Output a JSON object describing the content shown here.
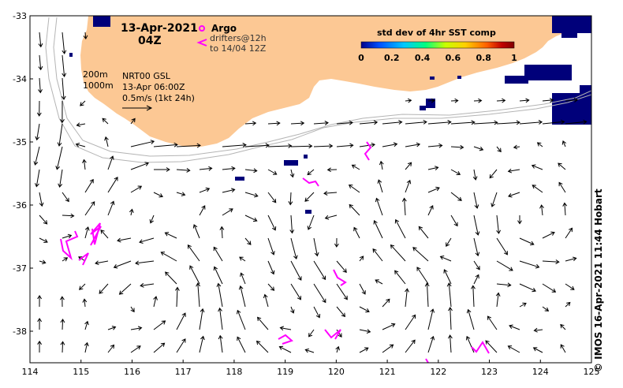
{
  "header": {
    "date": "13-Apr-2021",
    "time": "04Z"
  },
  "argo_legend": {
    "argo_label": "Argo",
    "drifters_label": "drifters@12h",
    "drifters_to": "to 14/04 12Z"
  },
  "info": {
    "isobath_200": "200m",
    "isobath_1000": "1000m",
    "product": "NRT00 GSL",
    "valid_time": "13-Apr 06:00Z",
    "scale_label": "0.5m/s (1kt 24h)"
  },
  "colorbar": {
    "title": "std dev of 4hr SST comp",
    "ticks": [
      "0",
      "0.2",
      "0.4",
      "0.6",
      "0.8",
      "1"
    ],
    "colors": [
      "#00008b",
      "#0050ff",
      "#00c8ff",
      "#00ff80",
      "#c8ff00",
      "#ffd000",
      "#ff6000",
      "#c00000",
      "#800000"
    ]
  },
  "axes": {
    "x_ticks": [
      "114",
      "115",
      "116",
      "117",
      "118",
      "119",
      "120",
      "121",
      "122",
      "123",
      "124",
      "125"
    ],
    "y_ticks": [
      "-33",
      "-34",
      "-35",
      "-36",
      "-37",
      "-38"
    ],
    "lon_range": [
      114,
      125
    ],
    "lat_range": [
      -38.5,
      -33
    ]
  },
  "colors": {
    "land": "#fcc894",
    "drifter": "#ff00ff",
    "sst_patch": "#00007a",
    "isobath": "#b4b4b4"
  },
  "credit": "© IMOS 16-Apr-2021 11:44 Hobart"
}
